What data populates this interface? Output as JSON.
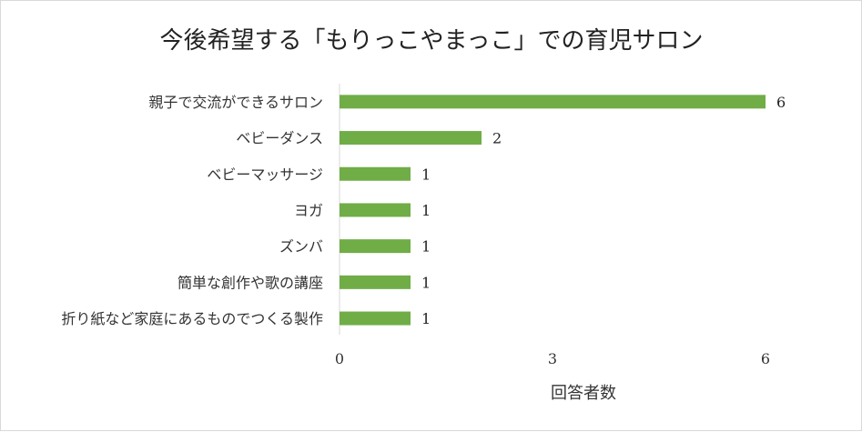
{
  "chart_data": {
    "type": "bar",
    "orientation": "horizontal",
    "title": "今後希望する「もりっこやまっこ」での育児サロン",
    "xlabel": "回答者数",
    "ylabel": "",
    "categories": [
      "親子で交流ができるサロン",
      "ベビーダンス",
      "ベビーマッサージ",
      "ヨガ",
      "ズンバ",
      "簡単な創作や歌の講座",
      "折り紙など家庭にあるものでつくる製作"
    ],
    "values": [
      6,
      2,
      1,
      1,
      1,
      1,
      1
    ],
    "xlim": [
      0,
      6
    ],
    "xticks": [
      0,
      3,
      6
    ],
    "grid": false,
    "legend": "none",
    "bar_color": "#70ad47"
  }
}
